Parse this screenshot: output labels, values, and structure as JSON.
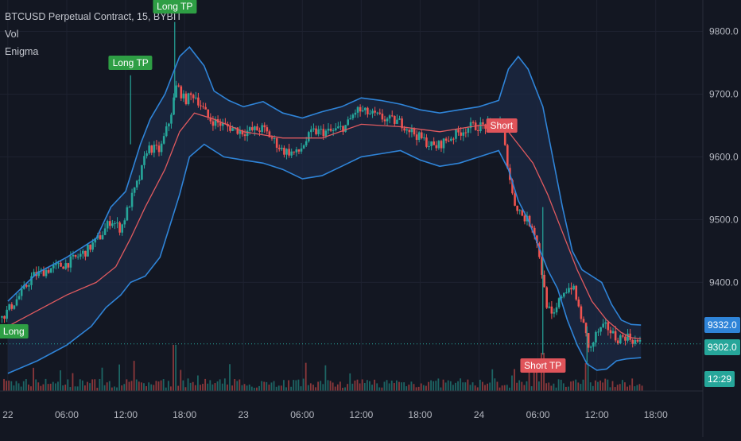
{
  "legend": {
    "symbol": "BTCUSD Perpetual Contract, 15, BYBIT",
    "indicator_1": "Vol",
    "indicator_2": "Enigma"
  },
  "price_tags": {
    "upper_band": "9332.0",
    "last_price": "9302.0",
    "countdown": "12:29"
  },
  "colors": {
    "background": "#131722",
    "band": "#2f84d8",
    "band_fill": "#1c2a44",
    "basis": "#e05a5f",
    "candle_up": "#26a69a",
    "candle_down": "#ef5350",
    "signal_green": "#2e9e44",
    "signal_red": "#e0545a",
    "last_price_line": "#26a69a"
  },
  "chart_data": {
    "type": "candlestick",
    "title": "",
    "xlabel": "",
    "ylabel": "",
    "ylim": [
      9227,
      9850
    ],
    "yticks": [
      {
        "value": 9800,
        "label": "9800.0"
      },
      {
        "value": 9700,
        "label": "9700.0"
      },
      {
        "value": 9600,
        "label": "9600.0"
      },
      {
        "value": 9500,
        "label": "9500.0"
      },
      {
        "value": 9400,
        "label": "9400.0"
      }
    ],
    "xticks": [
      {
        "t": 0.0,
        "label": "22"
      },
      {
        "t": 6.0,
        "label": "06:00"
      },
      {
        "t": 12.0,
        "label": "12:00"
      },
      {
        "t": 18.0,
        "label": "18:00"
      },
      {
        "t": 24.0,
        "label": "23"
      },
      {
        "t": 30.0,
        "label": "06:00"
      },
      {
        "t": 36.0,
        "label": "12:00"
      },
      {
        "t": 42.0,
        "label": "18:00"
      },
      {
        "t": 48.0,
        "label": "24"
      },
      {
        "t": 54.0,
        "label": "06:00"
      },
      {
        "t": 60.0,
        "label": "12:00"
      },
      {
        "t": 66.0,
        "label": "18:00"
      }
    ],
    "xlim": [
      -0.8,
      70.8
    ],
    "price_keys": [
      [
        -0.8,
        9340
      ],
      [
        0.5,
        9365
      ],
      [
        1.5,
        9385
      ],
      [
        2.5,
        9410
      ],
      [
        4.0,
        9420
      ],
      [
        6.0,
        9430
      ],
      [
        8.0,
        9450
      ],
      [
        9.5,
        9475
      ],
      [
        10.5,
        9500
      ],
      [
        11.5,
        9485
      ],
      [
        12.5,
        9530
      ],
      [
        13.5,
        9570
      ],
      [
        14.2,
        9615
      ],
      [
        15.5,
        9610
      ],
      [
        16.5,
        9660
      ],
      [
        17.2,
        9715
      ],
      [
        18.0,
        9690
      ],
      [
        19.0,
        9700
      ],
      [
        20.5,
        9660
      ],
      [
        22.0,
        9650
      ],
      [
        24.0,
        9640
      ],
      [
        26.0,
        9645
      ],
      [
        28.0,
        9610
      ],
      [
        29.5,
        9605
      ],
      [
        31.0,
        9640
      ],
      [
        33.0,
        9640
      ],
      [
        34.5,
        9650
      ],
      [
        35.5,
        9675
      ],
      [
        37.0,
        9668
      ],
      [
        38.5,
        9660
      ],
      [
        40.0,
        9655
      ],
      [
        42.0,
        9630
      ],
      [
        43.5,
        9615
      ],
      [
        45.0,
        9630
      ],
      [
        47.0,
        9648
      ],
      [
        49.0,
        9650
      ],
      [
        50.2,
        9655
      ],
      [
        50.8,
        9600
      ],
      [
        51.5,
        9530
      ],
      [
        52.5,
        9505
      ],
      [
        53.5,
        9490
      ],
      [
        54.2,
        9440
      ],
      [
        54.8,
        9370
      ],
      [
        55.5,
        9340
      ],
      [
        56.5,
        9385
      ],
      [
        57.5,
        9395
      ],
      [
        58.5,
        9340
      ],
      [
        59.3,
        9290
      ],
      [
        60.0,
        9320
      ],
      [
        61.0,
        9330
      ],
      [
        62.0,
        9310
      ],
      [
        63.0,
        9315
      ],
      [
        64.0,
        9305
      ],
      [
        64.5,
        9302
      ]
    ],
    "bollinger": {
      "upper": [
        [
          0.0,
          9370
        ],
        [
          3.0,
          9415
        ],
        [
          6.0,
          9440
        ],
        [
          9.0,
          9470
        ],
        [
          10.5,
          9520
        ],
        [
          12.0,
          9545
        ],
        [
          13.5,
          9620
        ],
        [
          14.5,
          9660
        ],
        [
          16.0,
          9700
        ],
        [
          17.5,
          9760
        ],
        [
          18.5,
          9775
        ],
        [
          20.0,
          9745
        ],
        [
          21.0,
          9705
        ],
        [
          22.5,
          9690
        ],
        [
          24.0,
          9680
        ],
        [
          26.0,
          9688
        ],
        [
          28.0,
          9670
        ],
        [
          30.0,
          9662
        ],
        [
          32.0,
          9672
        ],
        [
          34.0,
          9680
        ],
        [
          36.0,
          9694
        ],
        [
          38.0,
          9690
        ],
        [
          40.0,
          9684
        ],
        [
          42.0,
          9675
        ],
        [
          44.0,
          9670
        ],
        [
          46.0,
          9675
        ],
        [
          48.0,
          9680
        ],
        [
          50.0,
          9690
        ],
        [
          51.0,
          9740
        ],
        [
          52.0,
          9760
        ],
        [
          53.0,
          9740
        ],
        [
          54.5,
          9680
        ],
        [
          55.5,
          9600
        ],
        [
          56.5,
          9520
        ],
        [
          57.5,
          9450
        ],
        [
          58.5,
          9420
        ],
        [
          59.5,
          9410
        ],
        [
          60.5,
          9400
        ],
        [
          61.5,
          9365
        ],
        [
          62.5,
          9340
        ],
        [
          63.5,
          9333
        ],
        [
          64.5,
          9332
        ]
      ],
      "basis": [
        [
          0.0,
          9330
        ],
        [
          3.0,
          9355
        ],
        [
          6.0,
          9380
        ],
        [
          9.0,
          9400
        ],
        [
          11.0,
          9425
        ],
        [
          12.5,
          9470
        ],
        [
          14.0,
          9520
        ],
        [
          16.0,
          9580
        ],
        [
          17.5,
          9640
        ],
        [
          19.0,
          9670
        ],
        [
          21.0,
          9660
        ],
        [
          24.0,
          9640
        ],
        [
          28.0,
          9630
        ],
        [
          32.0,
          9630
        ],
        [
          36.0,
          9652
        ],
        [
          40.0,
          9648
        ],
        [
          44.0,
          9640
        ],
        [
          48.0,
          9650
        ],
        [
          50.0,
          9652
        ],
        [
          51.0,
          9640
        ],
        [
          52.0,
          9620
        ],
        [
          53.5,
          9590
        ],
        [
          55.0,
          9540
        ],
        [
          56.5,
          9480
        ],
        [
          58.0,
          9420
        ],
        [
          59.5,
          9370
        ],
        [
          61.0,
          9340
        ],
        [
          62.5,
          9320
        ],
        [
          63.5,
          9312
        ],
        [
          64.5,
          9310
        ]
      ],
      "lower": [
        [
          0.0,
          9255
        ],
        [
          3.0,
          9275
        ],
        [
          6.0,
          9300
        ],
        [
          8.5,
          9330
        ],
        [
          10.0,
          9360
        ],
        [
          11.5,
          9380
        ],
        [
          12.5,
          9400
        ],
        [
          14.0,
          9410
        ],
        [
          15.5,
          9440
        ],
        [
          16.5,
          9490
        ],
        [
          17.5,
          9540
        ],
        [
          18.5,
          9600
        ],
        [
          20.0,
          9620
        ],
        [
          22.0,
          9600
        ],
        [
          24.0,
          9595
        ],
        [
          26.0,
          9590
        ],
        [
          28.0,
          9580
        ],
        [
          30.0,
          9565
        ],
        [
          32.0,
          9570
        ],
        [
          34.0,
          9585
        ],
        [
          36.0,
          9600
        ],
        [
          38.0,
          9605
        ],
        [
          40.0,
          9610
        ],
        [
          42.0,
          9595
        ],
        [
          44.0,
          9585
        ],
        [
          46.0,
          9590
        ],
        [
          48.0,
          9600
        ],
        [
          50.0,
          9610
        ],
        [
          51.0,
          9580
        ],
        [
          52.0,
          9530
        ],
        [
          53.0,
          9500
        ],
        [
          54.0,
          9460
        ],
        [
          55.0,
          9420
        ],
        [
          56.0,
          9390
        ],
        [
          57.0,
          9340
        ],
        [
          58.0,
          9300
        ],
        [
          59.0,
          9270
        ],
        [
          60.0,
          9260
        ],
        [
          61.0,
          9262
        ],
        [
          62.0,
          9275
        ],
        [
          63.0,
          9278
        ],
        [
          64.5,
          9280
        ]
      ]
    },
    "last_price": 9302,
    "upper_band_last": 9332,
    "signals": [
      {
        "label": "Long",
        "t": 0.6,
        "price": 9322,
        "type": "buy"
      },
      {
        "label": "Long TP",
        "t": 12.5,
        "price": 9750,
        "type": "buy"
      },
      {
        "label": "Long TP",
        "t": 17.0,
        "price": 9840,
        "type": "buy"
      },
      {
        "label": "Short",
        "t": 50.3,
        "price": 9650,
        "type": "sell"
      },
      {
        "label": "Short TP",
        "t": 54.5,
        "price": 9267,
        "type": "sell"
      }
    ],
    "spikes": [
      {
        "t": 12.5,
        "from": 9620,
        "to": 9730
      },
      {
        "t": 17.0,
        "from": 9690,
        "to": 9815
      },
      {
        "t": 54.5,
        "from": 9285,
        "to": 9520
      },
      {
        "t": 59.0,
        "from": 9270,
        "to": 9330
      }
    ]
  }
}
